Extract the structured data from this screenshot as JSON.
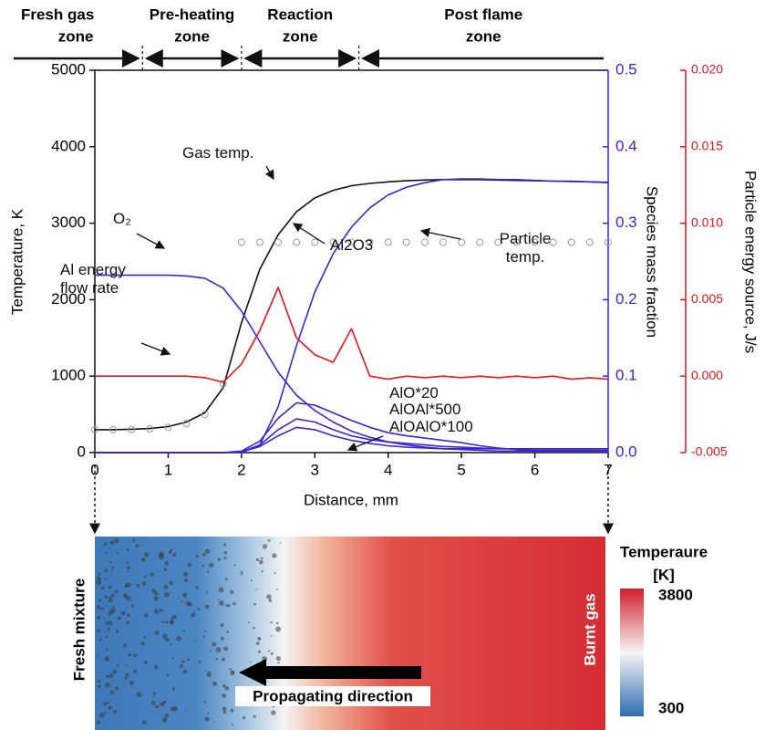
{
  "chart_data": {
    "type": "line",
    "x_label": "Distance, mm",
    "y_label": "Temperature, K",
    "y2_label": "Species mass fraction",
    "y3_label": "Particle energy source, J/s",
    "xlim": [
      0,
      7
    ],
    "xticks": [
      0,
      1,
      2,
      3,
      4,
      5,
      6,
      7
    ],
    "ylim": [
      0,
      5000
    ],
    "yticks": [
      0,
      1000,
      2000,
      3000,
      4000,
      5000
    ],
    "y2lim": [
      0,
      0.5
    ],
    "y2ticks": [
      {
        "value": 0,
        "label": "0.0"
      },
      0.1,
      0.2,
      0.3,
      0.4,
      0.5
    ],
    "y3lim": [
      -0.005,
      0.02
    ],
    "y3ticks": [
      -0.005,
      {
        "value": 0,
        "label": "0.000"
      },
      0.005,
      {
        "value": 0.01,
        "label": "0.010"
      },
      0.015,
      {
        "value": 0.02,
        "label": "0.020"
      }
    ],
    "y2color": "#3b25d8",
    "y3color": "#e8141a",
    "zones": [
      [
        "Fresh gas",
        "zone"
      ],
      [
        "Pre-heating",
        "zone"
      ],
      [
        "Reaction",
        "zone"
      ],
      [
        "Post flame",
        "zone"
      ]
    ],
    "zone_boundaries": [
      0.65,
      2.0,
      3.6
    ],
    "x": [
      0,
      0.25,
      0.5,
      0.75,
      1,
      1.25,
      1.5,
      1.75,
      2,
      2.25,
      2.5,
      2.75,
      3,
      3.25,
      3.5,
      3.75,
      4,
      4.25,
      4.5,
      4.75,
      5,
      5.25,
      5.5,
      5.75,
      6,
      6.25,
      6.5,
      6.75,
      7
    ],
    "series": [
      {
        "name": "Gas temp.",
        "color": "#111111",
        "axis": "y",
        "values": [
          300,
          300,
          305,
          315,
          340,
          400,
          520,
          850,
          1700,
          2400,
          2850,
          3150,
          3330,
          3430,
          3490,
          3520,
          3540,
          3555,
          3565,
          3570,
          3570,
          3570,
          3565,
          3560,
          3555,
          3550,
          3545,
          3540,
          3535
        ]
      },
      {
        "name": "Particle temp.",
        "color": "#9a9a9a",
        "axis": "y",
        "marker": "circle",
        "values": [
          300,
          300,
          300,
          310,
          330,
          380,
          500,
          900,
          2750,
          2750,
          2750,
          2750,
          2750,
          2750,
          2750,
          2750,
          2750,
          2750,
          2750,
          2750,
          2750,
          2750,
          2750,
          2750,
          2750,
          2750,
          2750,
          2750,
          2750
        ]
      },
      {
        "name": "O₂",
        "color": "#3b25d8",
        "axis": "y2",
        "values": [
          0.232,
          0.232,
          0.232,
          0.232,
          0.232,
          0.231,
          0.228,
          0.215,
          0.185,
          0.145,
          0.105,
          0.075,
          0.055,
          0.04,
          0.028,
          0.02,
          0.014,
          0.01,
          0.007,
          0.005,
          0.004,
          0.003,
          0.002,
          0.002,
          0.002,
          0.002,
          0.002,
          0.002,
          0.002
        ]
      },
      {
        "name": "Al2O3",
        "color": "#3b25d8",
        "axis": "y2",
        "values": [
          0,
          0,
          0,
          0,
          0,
          0,
          0,
          0,
          0,
          0.01,
          0.06,
          0.14,
          0.21,
          0.26,
          0.295,
          0.32,
          0.337,
          0.347,
          0.353,
          0.357,
          0.358,
          0.358,
          0.357,
          0.357,
          0.356,
          0.355,
          0.355,
          0.354,
          0.353
        ]
      },
      {
        "name": "AlO*20",
        "color": "#3b25d8",
        "axis": "y2",
        "values": [
          0,
          0,
          0,
          0,
          0,
          0,
          0,
          0,
          0.002,
          0.015,
          0.045,
          0.065,
          0.062,
          0.052,
          0.042,
          0.033,
          0.026,
          0.022,
          0.019,
          0.016,
          0.013,
          0.009,
          0.006,
          0.004,
          0.003,
          0.003,
          0.003,
          0.003,
          0.003
        ]
      },
      {
        "name": "AlOAl*500",
        "color": "#3b25d8",
        "axis": "y2",
        "values": [
          0,
          0,
          0,
          0,
          0,
          0,
          0,
          0,
          0.001,
          0.01,
          0.03,
          0.044,
          0.04,
          0.03,
          0.022,
          0.017,
          0.014,
          0.012,
          0.01,
          0.008,
          0.007,
          0.006,
          0.005,
          0.005,
          0.005,
          0.005,
          0.005,
          0.005,
          0.005
        ]
      },
      {
        "name": "AlOAlO*100",
        "color": "#3b25d8",
        "axis": "y2",
        "values": [
          0,
          0,
          0,
          0,
          0,
          0,
          0,
          0,
          0.001,
          0.008,
          0.022,
          0.033,
          0.03,
          0.022,
          0.016,
          0.012,
          0.009,
          0.007,
          0.006,
          0.005,
          0.005,
          0.005,
          0.005,
          0.005,
          0.005,
          0.005,
          0.005,
          0.005,
          0.005
        ]
      },
      {
        "name": "Al energy flow rate",
        "color": "#e8141a",
        "axis": "y3",
        "values": [
          0,
          0,
          0,
          0,
          0,
          0,
          -0.0001,
          -0.0004,
          0.0008,
          0.003,
          0.0058,
          0.0025,
          0.0014,
          0.0009,
          0.0031,
          0,
          -0.0002,
          0,
          -0.0001,
          0,
          -0.0001,
          0,
          -0.0001,
          0,
          -0.0001,
          0,
          -0.0002,
          -0.0001,
          -0.0002
        ]
      }
    ],
    "panel": {
      "left_label": "Fresh mixture",
      "right_label": "Burnt gas",
      "arrow_label": "Propagating direction"
    },
    "colorbar": {
      "title": "Temperaure",
      "unit": "[K]",
      "max": 3800,
      "min": 300
    }
  }
}
